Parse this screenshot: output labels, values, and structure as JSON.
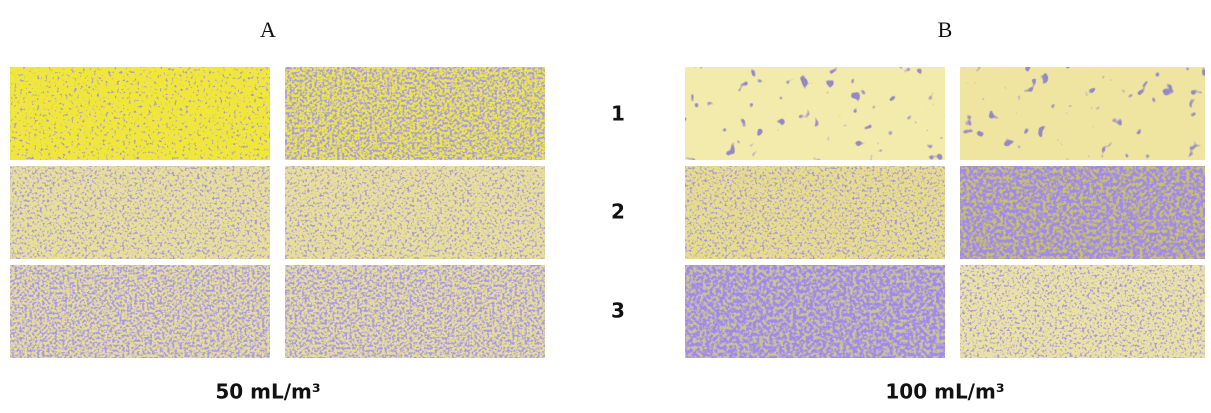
{
  "panels": [
    {
      "label": "A",
      "caption": "50 mL/m³"
    },
    {
      "label": "B",
      "caption": "100 mL/m³"
    }
  ],
  "row_labels": [
    "1",
    "2",
    "3"
  ]
}
